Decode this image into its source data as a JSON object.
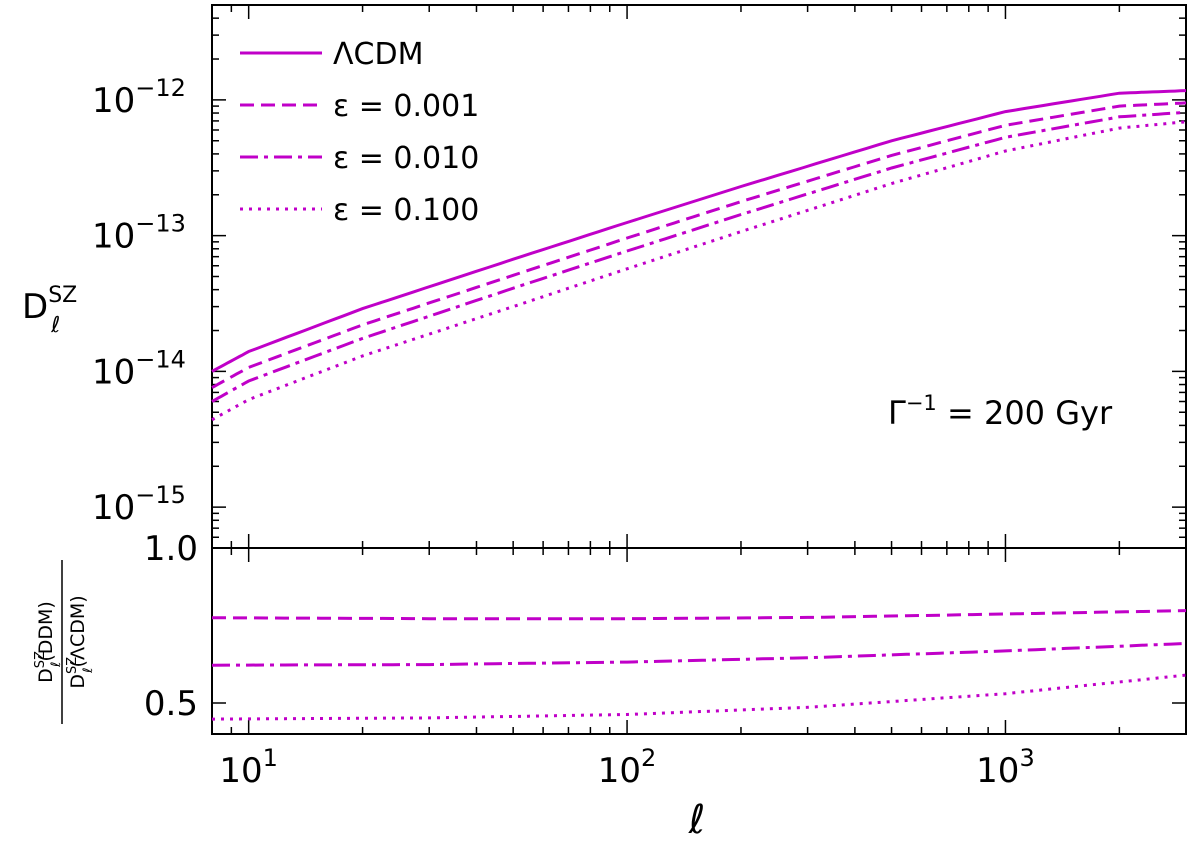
{
  "chart_data": [
    {
      "type": "line",
      "panel": "top",
      "xscale": "log",
      "yscale": "log",
      "xlim": [
        8,
        3000
      ],
      "ylim": [
        5e-16,
        5e-12
      ],
      "ylabel_main": "D",
      "ylabel_sup": "SZ",
      "ylabel_sub": "ℓ",
      "ytick_labels": [
        {
          "value": 1e-15,
          "exp": "−15"
        },
        {
          "value": 1e-14,
          "exp": "−14"
        },
        {
          "value": 1e-13,
          "exp": "−13"
        },
        {
          "value": 1e-12,
          "exp": "−12"
        }
      ],
      "annotation_base": "Γ",
      "annotation_sup": "−1",
      "annotation_rest": " = 200 Gyr",
      "legend_position": "upper-left",
      "color": "#c000c8",
      "series": [
        {
          "name": "ΛCDM",
          "style": "solid",
          "x": [
            8,
            10,
            20,
            50,
            100,
            200,
            500,
            1000,
            2000,
            3000
          ],
          "y": [
            1e-14,
            1.4e-14,
            2.9e-14,
            6.7e-14,
            1.25e-13,
            2.3e-13,
            5e-13,
            8.2e-13,
            1.12e-12,
            1.17e-12
          ]
        },
        {
          "name": "ε = 0.001",
          "style": "dashed",
          "x": [
            8,
            10,
            20,
            50,
            100,
            200,
            500,
            1000,
            2000,
            3000
          ],
          "y": [
            7.6e-15,
            1.07e-14,
            2.2e-14,
            5.1e-14,
            9.6e-14,
            1.78e-13,
            3.9e-13,
            6.5e-13,
            9e-13,
            9.5e-13
          ]
        },
        {
          "name": "ε = 0.010",
          "style": "dashdot",
          "x": [
            8,
            10,
            20,
            50,
            100,
            200,
            500,
            1000,
            2000,
            3000
          ],
          "y": [
            6e-15,
            8.5e-15,
            1.75e-14,
            4.1e-14,
            7.7e-14,
            1.43e-13,
            3.15e-13,
            5.3e-13,
            7.5e-13,
            8.1e-13
          ]
        },
        {
          "name": "ε = 0.100",
          "style": "dotted",
          "x": [
            8,
            10,
            20,
            50,
            100,
            200,
            500,
            1000,
            2000,
            3000
          ],
          "y": [
            4.4e-15,
            6.2e-15,
            1.3e-14,
            3e-14,
            5.7e-14,
            1.07e-13,
            2.42e-13,
            4.2e-13,
            6.2e-13,
            6.9e-13
          ]
        }
      ]
    },
    {
      "type": "line",
      "panel": "bottom",
      "xscale": "log",
      "yscale": "linear",
      "xlim": [
        8,
        3000
      ],
      "ylim": [
        0.4,
        1.0
      ],
      "xlabel": "ℓ",
      "xtick_labels": [
        {
          "value": 10,
          "base": "10",
          "exp": "1"
        },
        {
          "value": 100,
          "base": "10",
          "exp": "2"
        },
        {
          "value": 1000,
          "base": "10",
          "exp": "3"
        }
      ],
      "ytick_labels": [
        {
          "value": 0.5,
          "label": "0.5"
        },
        {
          "value": 1.0,
          "label": "1.0"
        }
      ],
      "ylabel_num_main": "D",
      "ylabel_num_sup": "SZ",
      "ylabel_num_sub": "ℓ",
      "ylabel_num_rest": "(DDM)",
      "ylabel_den_main": "D",
      "ylabel_den_sup": "SZ",
      "ylabel_den_sub": "ℓ",
      "ylabel_den_rest": "(ΛCDM)",
      "color": "#c000c8",
      "series": [
        {
          "style": "dashed",
          "x": [
            8,
            30,
            100,
            300,
            1000,
            3000
          ],
          "y": [
            0.775,
            0.772,
            0.772,
            0.776,
            0.787,
            0.798
          ]
        },
        {
          "style": "dashdot",
          "x": [
            8,
            30,
            100,
            300,
            1000,
            3000
          ],
          "y": [
            0.622,
            0.624,
            0.632,
            0.646,
            0.668,
            0.692
          ]
        },
        {
          "style": "dotted",
          "x": [
            8,
            30,
            100,
            300,
            1000,
            3000
          ],
          "y": [
            0.448,
            0.452,
            0.463,
            0.486,
            0.53,
            0.59
          ]
        }
      ]
    }
  ]
}
